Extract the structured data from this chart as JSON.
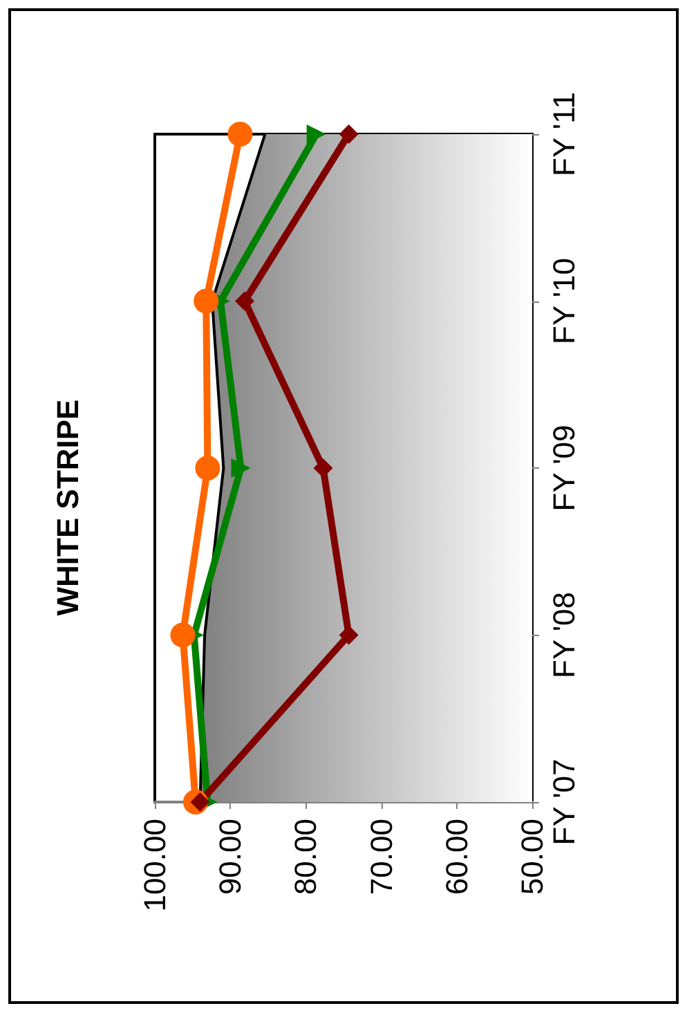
{
  "chart_data": {
    "type": "line",
    "title": "WHITE STRIPE",
    "orientation": "horizontal",
    "categories": [
      "FY '11",
      "FY '10",
      "FY '09",
      "FY '08",
      "FY '07"
    ],
    "series": [
      {
        "type": "area",
        "color": "#808080",
        "marker": "none",
        "values": [
          85.4,
          92.4,
          90.9,
          93.4,
          94.0
        ]
      },
      {
        "color": "#008000",
        "marker": "triangle",
        "values": [
          78.6,
          91.3,
          88.6,
          94.8,
          93.0
        ]
      },
      {
        "color": "#ff6600",
        "marker": "circle",
        "values": [
          88.7,
          93.2,
          93.0,
          96.3,
          94.6
        ]
      },
      {
        "color": "#800000",
        "marker": "diamond",
        "values": [
          74.3,
          88.1,
          77.7,
          74.3,
          94.0
        ]
      }
    ],
    "xlim": [
      100,
      50
    ],
    "xticks": [
      {
        "value": 100,
        "label": "100.00"
      },
      {
        "value": 90,
        "label": "90.00"
      },
      {
        "value": 80,
        "label": "80.00"
      },
      {
        "value": 70,
        "label": "70.00"
      },
      {
        "value": 60,
        "label": "60.00"
      },
      {
        "value": 50,
        "label": "50.00"
      }
    ],
    "grid": false
  }
}
